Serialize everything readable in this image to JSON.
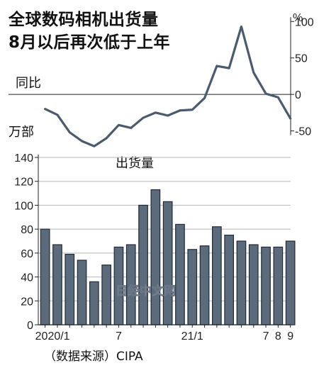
{
  "title": "全球数码相机出货量",
  "subtitle": "8月以后再次低于上年",
  "source": "（数据来源）CIPA",
  "watermark": "日经中文网",
  "chart_data": [
    {
      "type": "line",
      "label": "同比",
      "unit": "%",
      "x": [
        "2020/1",
        "2020/2",
        "2020/3",
        "2020/4",
        "2020/5",
        "2020/6",
        "2020/7",
        "2020/8",
        "2020/9",
        "2020/10",
        "2020/11",
        "2020/12",
        "2021/1",
        "2021/2",
        "2021/3",
        "2021/4",
        "2021/5",
        "2021/6",
        "2021/7",
        "2021/8",
        "2021/9"
      ],
      "values": [
        -20,
        -28,
        -52,
        -64,
        -71,
        -60,
        -42,
        -46,
        -32,
        -25,
        -29,
        -22,
        -21,
        -5,
        39,
        36,
        93,
        30,
        1,
        -4,
        -33
      ],
      "ylim": [
        -65,
        110
      ],
      "yticks": [
        100,
        50,
        0,
        -50
      ],
      "baseline": 0
    },
    {
      "type": "bar",
      "label": "出货量",
      "ylabel": "万部",
      "categories": [
        "2020/1",
        "2020/2",
        "2020/3",
        "2020/4",
        "2020/5",
        "2020/6",
        "2020/7",
        "2020/8",
        "2020/9",
        "2020/10",
        "2020/11",
        "2020/12",
        "2021/1",
        "2021/2",
        "2021/3",
        "2021/4",
        "2021/5",
        "2021/6",
        "2021/7",
        "2021/8",
        "2021/9"
      ],
      "values": [
        80,
        67,
        59,
        54,
        36,
        50,
        65,
        67,
        100,
        113,
        103,
        84,
        63,
        66,
        82,
        75,
        70,
        67,
        65,
        65,
        70
      ],
      "ylim": [
        0,
        140
      ],
      "yticks": [
        0,
        20,
        40,
        60,
        80,
        100,
        120,
        140
      ],
      "xtick_labels": [
        {
          "index": 0,
          "text": "2020/1"
        },
        {
          "index": 6,
          "text": "7"
        },
        {
          "index": 12,
          "text": "21/1"
        },
        {
          "index": 18,
          "text": "7"
        },
        {
          "index": 19,
          "text": "8"
        },
        {
          "index": 20,
          "text": "9"
        }
      ],
      "bar_color": "#5b6b7c",
      "grid": true
    }
  ]
}
